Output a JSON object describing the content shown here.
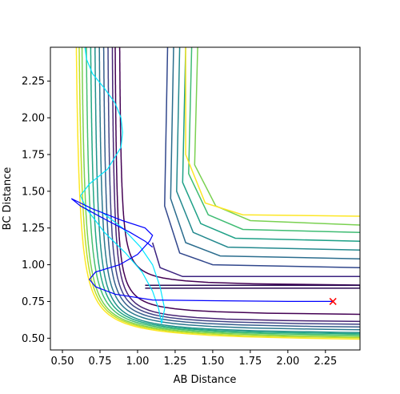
{
  "chart_data": {
    "type": "contour",
    "title": "",
    "xlabel": "AB Distance",
    "ylabel": "BC Distance",
    "xlim": [
      0.42,
      2.48
    ],
    "ylim": [
      0.42,
      2.48
    ],
    "xticks": [
      0.5,
      0.75,
      1.0,
      1.25,
      1.5,
      1.75,
      2.0,
      2.25
    ],
    "xtick_labels": [
      "0.50",
      "0.75",
      "1.00",
      "1.25",
      "1.50",
      "1.75",
      "2.00",
      "2.25"
    ],
    "yticks": [
      0.5,
      0.75,
      1.0,
      1.25,
      1.5,
      1.75,
      2.0,
      2.25
    ],
    "ytick_labels": [
      "0.50",
      "0.75",
      "1.00",
      "1.25",
      "1.50",
      "1.75",
      "2.00",
      "2.25"
    ],
    "grid": false,
    "legend": "none",
    "colormap": "viridis",
    "contour_levels": [
      {
        "asymptote_x": 0.87,
        "asymptote_y": 0.85,
        "color": "#440154"
      },
      {
        "asymptote_x": 0.84,
        "asymptote_y": 0.65,
        "color": "#440154"
      },
      {
        "asymptote_x": 0.82,
        "asymptote_y": 0.6,
        "color": "#482475"
      },
      {
        "asymptote_x": 0.79,
        "asymptote_y": 0.58,
        "color": "#414487"
      },
      {
        "asymptote_x": 0.76,
        "asymptote_y": 0.56,
        "color": "#355f8d"
      },
      {
        "asymptote_x": 0.73,
        "asymptote_y": 0.54,
        "color": "#2a788e"
      },
      {
        "asymptote_x": 0.7,
        "asymptote_y": 0.52,
        "color": "#21918c"
      },
      {
        "asymptote_x": 0.67,
        "asymptote_y": 0.51,
        "color": "#22a884"
      },
      {
        "asymptote_x": 0.64,
        "asymptote_y": 0.5,
        "color": "#44bf70"
      },
      {
        "asymptote_x": 0.61,
        "asymptote_y": 0.49,
        "color": "#7ad151"
      },
      {
        "asymptote_x": 0.59,
        "asymptote_y": 0.48,
        "color": "#bddf26"
      },
      {
        "asymptote_x": 0.57,
        "asymptote_y": 0.47,
        "color": "#fde725"
      }
    ],
    "inner_contours": [
      {
        "color": "#2b0a54",
        "points": [
          [
            1.05,
            0.84
          ],
          [
            2.48,
            0.84
          ],
          [
            2.48,
            0.86
          ],
          [
            1.05,
            0.86
          ]
        ]
      },
      {
        "color": "#3b2280",
        "points": [
          [
            1.1,
            1.15
          ],
          [
            1.15,
            0.98
          ],
          [
            1.3,
            0.92
          ],
          [
            2.48,
            0.92
          ]
        ]
      },
      {
        "color": "#31478c",
        "points": [
          [
            1.2,
            2.48
          ],
          [
            1.18,
            1.4
          ],
          [
            1.28,
            1.08
          ],
          [
            1.5,
            1.0
          ],
          [
            2.48,
            0.98
          ]
        ]
      },
      {
        "color": "#2b6d8e",
        "points": [
          [
            1.24,
            2.48
          ],
          [
            1.22,
            1.45
          ],
          [
            1.32,
            1.15
          ],
          [
            1.55,
            1.06
          ],
          [
            2.48,
            1.04
          ]
        ]
      },
      {
        "color": "#23898e",
        "points": [
          [
            1.28,
            2.48
          ],
          [
            1.26,
            1.5
          ],
          [
            1.37,
            1.22
          ],
          [
            1.6,
            1.12
          ],
          [
            2.48,
            1.1
          ]
        ]
      },
      {
        "color": "#1fa187",
        "points": [
          [
            1.32,
            2.48
          ],
          [
            1.3,
            1.56
          ],
          [
            1.42,
            1.28
          ],
          [
            1.65,
            1.18
          ],
          [
            2.48,
            1.16
          ]
        ]
      },
      {
        "color": "#3fbc73",
        "points": [
          [
            1.36,
            2.48
          ],
          [
            1.34,
            1.62
          ],
          [
            1.47,
            1.34
          ],
          [
            1.7,
            1.24
          ],
          [
            2.48,
            1.22
          ]
        ]
      },
      {
        "color": "#7ad151",
        "points": [
          [
            1.4,
            2.48
          ],
          [
            1.38,
            1.68
          ],
          [
            1.52,
            1.4
          ],
          [
            1.75,
            1.3
          ],
          [
            2.48,
            1.27
          ]
        ]
      },
      {
        "color": "#fde725",
        "points": [
          [
            1.32,
            2.48
          ],
          [
            1.32,
            1.75
          ],
          [
            1.45,
            1.42
          ],
          [
            1.7,
            1.34
          ],
          [
            2.48,
            1.33
          ]
        ]
      }
    ],
    "trajectory_blue": {
      "color": "#0000ff",
      "points": [
        [
          2.3,
          0.75
        ],
        [
          2.0,
          0.75
        ],
        [
          1.5,
          0.755
        ],
        [
          1.1,
          0.76
        ],
        [
          0.85,
          0.8
        ],
        [
          0.72,
          0.85
        ],
        [
          0.68,
          0.9
        ],
        [
          0.72,
          0.95
        ],
        [
          0.88,
          1.0
        ],
        [
          1.0,
          1.07
        ],
        [
          1.08,
          1.16
        ],
        [
          1.1,
          1.2
        ],
        [
          1.05,
          1.25
        ],
        [
          0.9,
          1.3
        ],
        [
          0.7,
          1.38
        ],
        [
          0.56,
          1.45
        ],
        [
          0.62,
          1.4
        ],
        [
          0.8,
          1.3
        ],
        [
          0.95,
          1.22
        ],
        [
          1.05,
          1.16
        ],
        [
          1.1,
          1.12
        ]
      ]
    },
    "trajectory_cyan": {
      "color": "#00e5ff",
      "points": [
        [
          0.65,
          2.48
        ],
        [
          0.66,
          2.4
        ],
        [
          0.7,
          2.3
        ],
        [
          0.78,
          2.2
        ],
        [
          0.85,
          2.1
        ],
        [
          0.89,
          2.0
        ],
        [
          0.9,
          1.9
        ],
        [
          0.89,
          1.8
        ],
        [
          0.8,
          1.65
        ],
        [
          0.68,
          1.55
        ],
        [
          0.62,
          1.47
        ],
        [
          0.66,
          1.38
        ],
        [
          0.78,
          1.22
        ],
        [
          0.92,
          1.08
        ],
        [
          1.03,
          0.95
        ],
        [
          1.1,
          0.82
        ],
        [
          1.14,
          0.7
        ],
        [
          1.16,
          0.6
        ],
        [
          1.18,
          0.7
        ],
        [
          1.15,
          0.85
        ],
        [
          1.1,
          1.0
        ],
        [
          1.02,
          1.12
        ],
        [
          0.9,
          1.25
        ],
        [
          0.76,
          1.36
        ]
      ]
    },
    "marker": {
      "x": 2.3,
      "y": 0.75,
      "symbol": "x",
      "color": "#ff0000"
    }
  }
}
